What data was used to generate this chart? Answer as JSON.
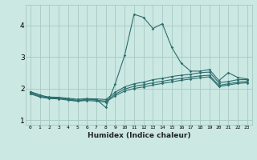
{
  "xlabel": "Humidex (Indice chaleur)",
  "background_color": "#cbe8e3",
  "grid_color": "#a8c8c4",
  "line_color": "#2d6e6e",
  "xlim": [
    -0.5,
    23.5
  ],
  "ylim": [
    0.85,
    4.65
  ],
  "xtick_labels": [
    "0",
    "1",
    "2",
    "3",
    "4",
    "5",
    "6",
    "7",
    "8",
    "9",
    "10",
    "11",
    "12",
    "13",
    "14",
    "15",
    "16",
    "17",
    "18",
    "19",
    "20",
    "21",
    "22",
    "23"
  ],
  "ytick_values": [
    1,
    2,
    3,
    4
  ],
  "line1": [
    1.9,
    1.8,
    1.7,
    1.7,
    1.65,
    1.6,
    1.65,
    1.65,
    1.4,
    2.15,
    3.05,
    4.35,
    4.25,
    3.9,
    4.05,
    3.3,
    2.8,
    2.55,
    2.55,
    2.6,
    2.25,
    2.5,
    2.35,
    2.3
  ],
  "line2": [
    1.88,
    1.78,
    1.73,
    1.72,
    1.69,
    1.66,
    1.68,
    1.67,
    1.65,
    1.88,
    2.05,
    2.15,
    2.2,
    2.28,
    2.32,
    2.38,
    2.42,
    2.45,
    2.5,
    2.52,
    2.18,
    2.22,
    2.28,
    2.28
  ],
  "line3": [
    1.85,
    1.75,
    1.7,
    1.7,
    1.66,
    1.63,
    1.65,
    1.63,
    1.6,
    1.82,
    1.98,
    2.07,
    2.12,
    2.18,
    2.23,
    2.28,
    2.32,
    2.36,
    2.4,
    2.42,
    2.1,
    2.15,
    2.2,
    2.22
  ],
  "line4": [
    1.83,
    1.73,
    1.68,
    1.67,
    1.63,
    1.6,
    1.62,
    1.6,
    1.57,
    1.77,
    1.92,
    2.0,
    2.05,
    2.11,
    2.16,
    2.21,
    2.26,
    2.3,
    2.34,
    2.37,
    2.06,
    2.11,
    2.16,
    2.18
  ]
}
